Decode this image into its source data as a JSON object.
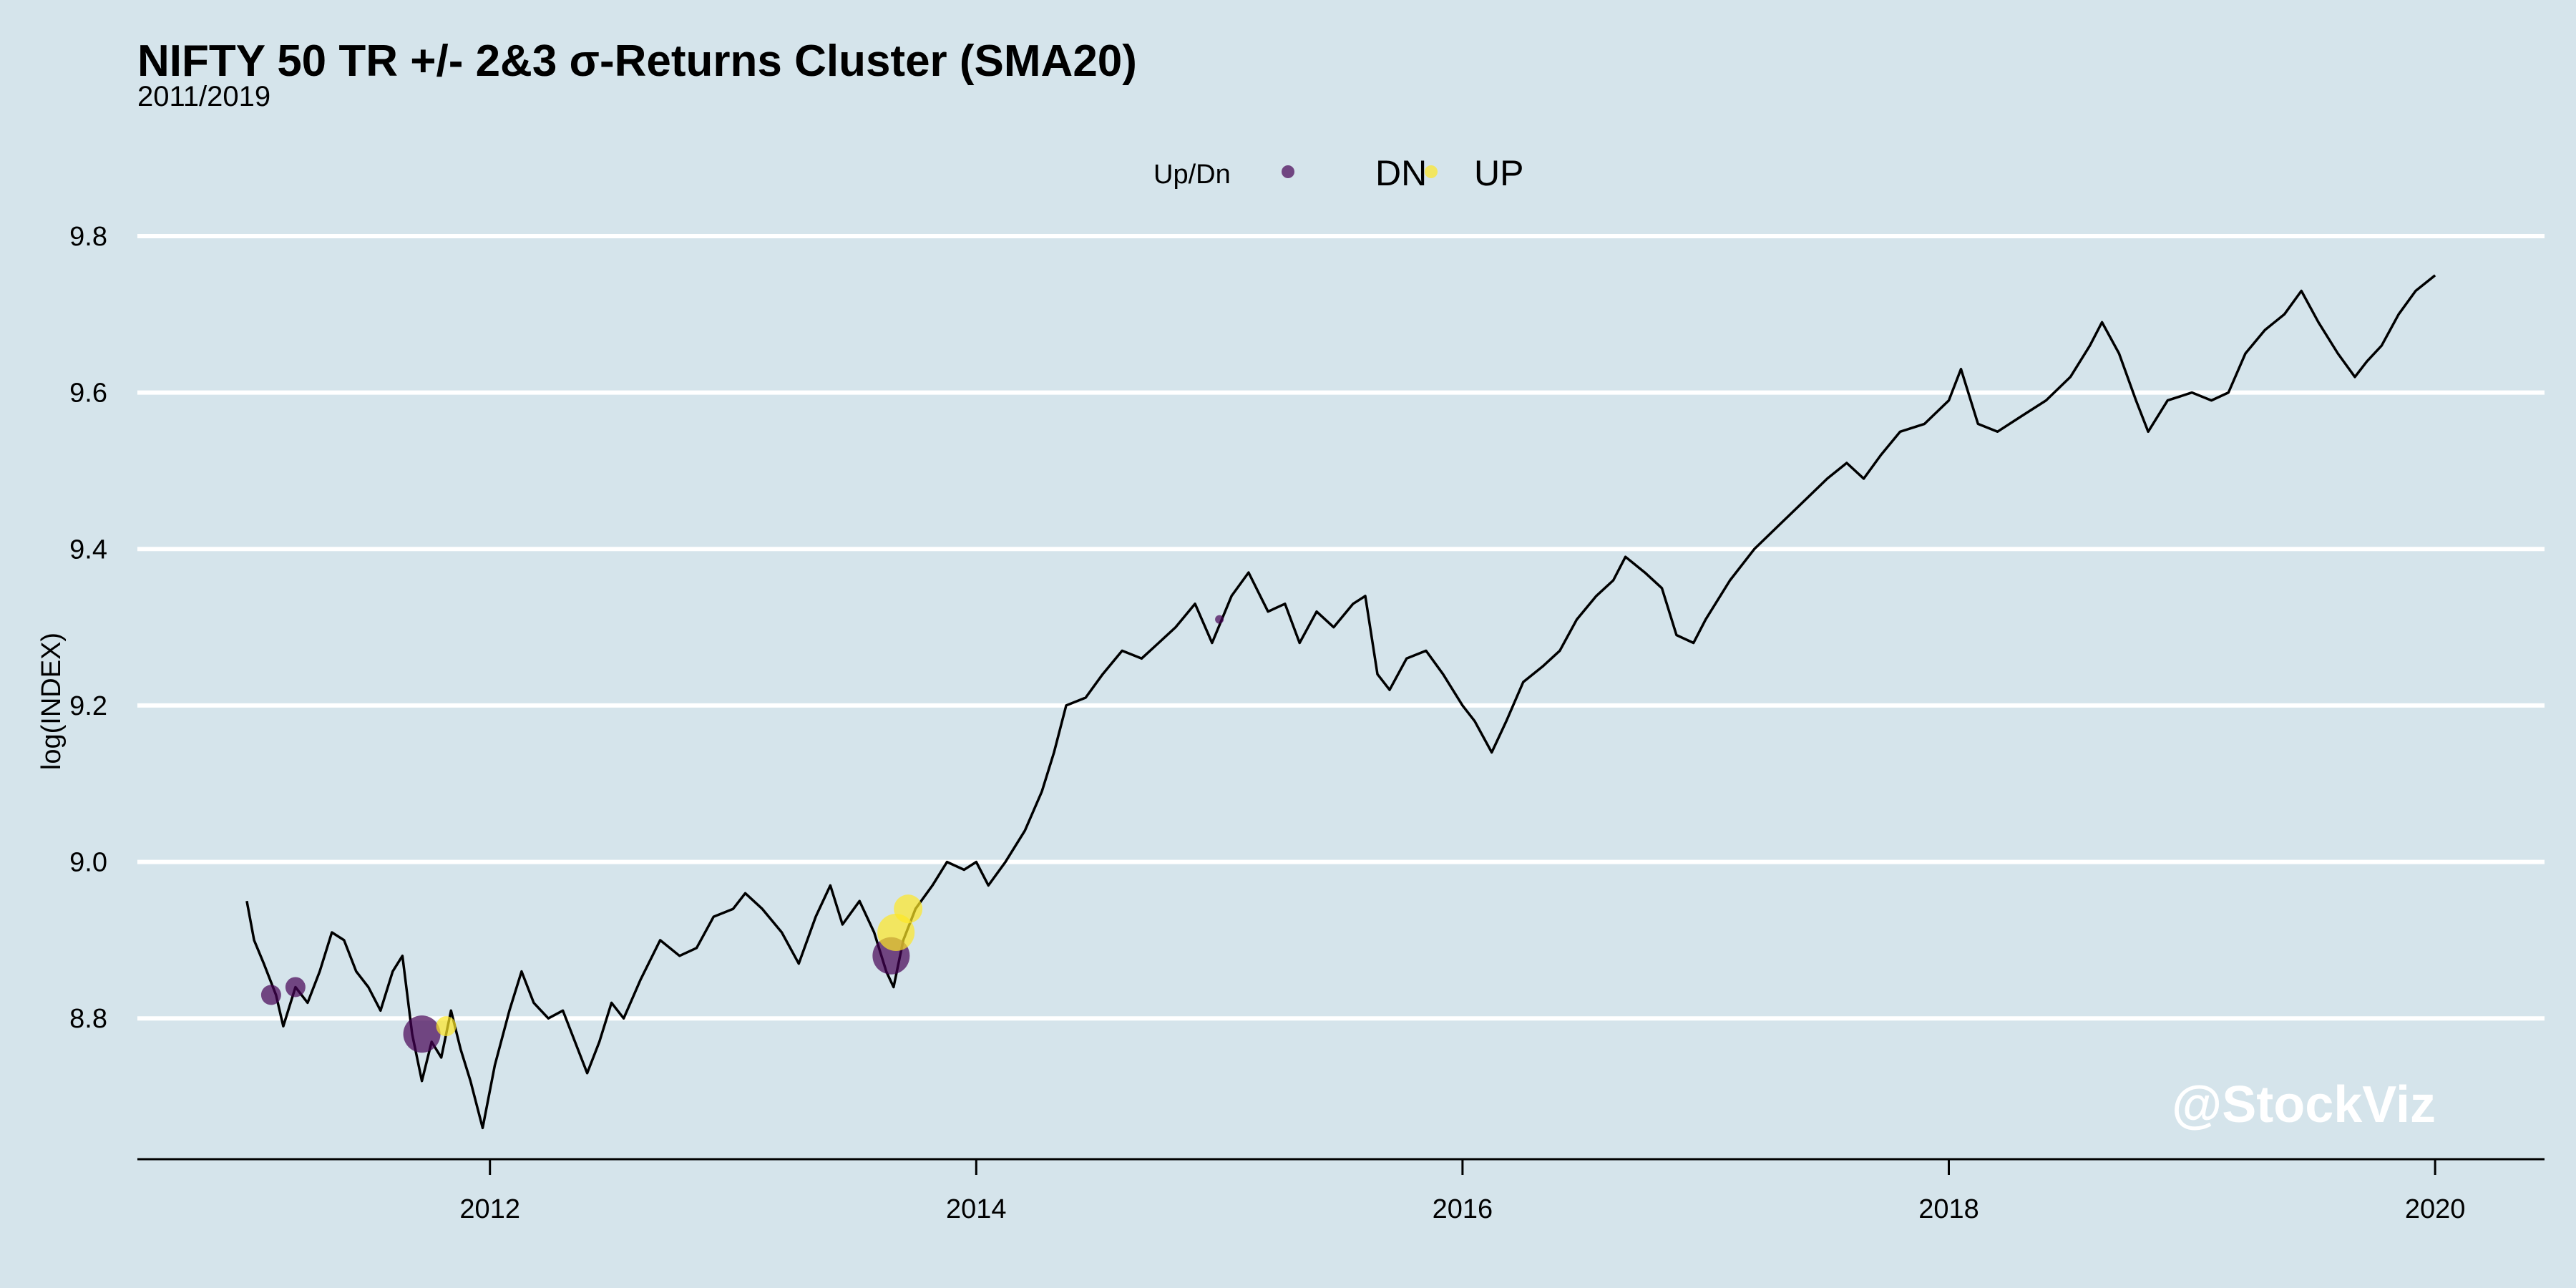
{
  "title": "NIFTY 50 TR +/- 2&3 σ-Returns Cluster (SMA20)",
  "subtitle": "2011/2019",
  "watermark": "@StockViz",
  "legend": {
    "title": "Up/Dn",
    "items": [
      {
        "label": "DN",
        "color": "#440154"
      },
      {
        "label": "UP",
        "color": "#fde725"
      }
    ]
  },
  "chart_data": {
    "type": "line",
    "title": "NIFTY 50 TR +/- 2&3 σ-Returns Cluster (SMA20)",
    "subtitle": "2011/2019",
    "xlabel": "",
    "ylabel": "log(INDEX)",
    "xlim": [
      2010.55,
      2020.45
    ],
    "ylim": [
      8.62,
      9.8
    ],
    "x_ticks": [
      2012,
      2014,
      2016,
      2018,
      2020
    ],
    "x_tick_labels": [
      "2012",
      "2014",
      "2016",
      "2018",
      "2020"
    ],
    "y_ticks": [
      8.8,
      9.0,
      9.2,
      9.4,
      9.6,
      9.8
    ],
    "y_tick_labels": [
      "8.8",
      "9.0",
      "9.2",
      "9.4",
      "9.6",
      "9.8"
    ],
    "grid": "horizontal",
    "legend_position": "top",
    "line_color": "#000000",
    "series": [
      {
        "values": [
          [
            2011.0,
            8.95
          ],
          [
            2011.03,
            8.9
          ],
          [
            2011.07,
            8.87
          ],
          [
            2011.12,
            8.83
          ],
          [
            2011.15,
            8.79
          ],
          [
            2011.2,
            8.84
          ],
          [
            2011.25,
            8.82
          ],
          [
            2011.3,
            8.86
          ],
          [
            2011.35,
            8.91
          ],
          [
            2011.4,
            8.9
          ],
          [
            2011.45,
            8.86
          ],
          [
            2011.5,
            8.84
          ],
          [
            2011.55,
            8.81
          ],
          [
            2011.6,
            8.86
          ],
          [
            2011.64,
            8.88
          ],
          [
            2011.68,
            8.78
          ],
          [
            2011.72,
            8.72
          ],
          [
            2011.76,
            8.77
          ],
          [
            2011.8,
            8.75
          ],
          [
            2011.84,
            8.81
          ],
          [
            2011.88,
            8.76
          ],
          [
            2011.92,
            8.72
          ],
          [
            2011.97,
            8.66
          ],
          [
            2012.02,
            8.74
          ],
          [
            2012.08,
            8.81
          ],
          [
            2012.13,
            8.86
          ],
          [
            2012.18,
            8.82
          ],
          [
            2012.24,
            8.8
          ],
          [
            2012.3,
            8.81
          ],
          [
            2012.35,
            8.77
          ],
          [
            2012.4,
            8.73
          ],
          [
            2012.45,
            8.77
          ],
          [
            2012.5,
            8.82
          ],
          [
            2012.55,
            8.8
          ],
          [
            2012.62,
            8.85
          ],
          [
            2012.7,
            8.9
          ],
          [
            2012.78,
            8.88
          ],
          [
            2012.85,
            8.89
          ],
          [
            2012.92,
            8.93
          ],
          [
            2013.0,
            8.94
          ],
          [
            2013.05,
            8.96
          ],
          [
            2013.12,
            8.94
          ],
          [
            2013.2,
            8.91
          ],
          [
            2013.27,
            8.87
          ],
          [
            2013.34,
            8.93
          ],
          [
            2013.4,
            8.97
          ],
          [
            2013.45,
            8.92
          ],
          [
            2013.52,
            8.95
          ],
          [
            2013.58,
            8.91
          ],
          [
            2013.63,
            8.86
          ],
          [
            2013.66,
            8.84
          ],
          [
            2013.7,
            8.9
          ],
          [
            2013.75,
            8.94
          ],
          [
            2013.82,
            8.97
          ],
          [
            2013.88,
            9.0
          ],
          [
            2013.95,
            8.99
          ],
          [
            2014.0,
            9.0
          ],
          [
            2014.05,
            8.97
          ],
          [
            2014.12,
            9.0
          ],
          [
            2014.2,
            9.04
          ],
          [
            2014.27,
            9.09
          ],
          [
            2014.32,
            9.14
          ],
          [
            2014.37,
            9.2
          ],
          [
            2014.45,
            9.21
          ],
          [
            2014.52,
            9.24
          ],
          [
            2014.6,
            9.27
          ],
          [
            2014.68,
            9.26
          ],
          [
            2014.75,
            9.28
          ],
          [
            2014.82,
            9.3
          ],
          [
            2014.9,
            9.33
          ],
          [
            2014.97,
            9.28
          ],
          [
            2015.05,
            9.34
          ],
          [
            2015.12,
            9.37
          ],
          [
            2015.2,
            9.32
          ],
          [
            2015.27,
            9.33
          ],
          [
            2015.33,
            9.28
          ],
          [
            2015.4,
            9.32
          ],
          [
            2015.47,
            9.3
          ],
          [
            2015.55,
            9.33
          ],
          [
            2015.6,
            9.34
          ],
          [
            2015.65,
            9.24
          ],
          [
            2015.7,
            9.22
          ],
          [
            2015.77,
            9.26
          ],
          [
            2015.85,
            9.27
          ],
          [
            2015.92,
            9.24
          ],
          [
            2016.0,
            9.2
          ],
          [
            2016.05,
            9.18
          ],
          [
            2016.12,
            9.14
          ],
          [
            2016.18,
            9.18
          ],
          [
            2016.25,
            9.23
          ],
          [
            2016.33,
            9.25
          ],
          [
            2016.4,
            9.27
          ],
          [
            2016.47,
            9.31
          ],
          [
            2016.55,
            9.34
          ],
          [
            2016.62,
            9.36
          ],
          [
            2016.67,
            9.39
          ],
          [
            2016.75,
            9.37
          ],
          [
            2016.82,
            9.35
          ],
          [
            2016.88,
            9.29
          ],
          [
            2016.95,
            9.28
          ],
          [
            2017.0,
            9.31
          ],
          [
            2017.1,
            9.36
          ],
          [
            2017.2,
            9.4
          ],
          [
            2017.3,
            9.43
          ],
          [
            2017.4,
            9.46
          ],
          [
            2017.5,
            9.49
          ],
          [
            2017.58,
            9.51
          ],
          [
            2017.65,
            9.49
          ],
          [
            2017.72,
            9.52
          ],
          [
            2017.8,
            9.55
          ],
          [
            2017.9,
            9.56
          ],
          [
            2018.0,
            9.59
          ],
          [
            2018.05,
            9.63
          ],
          [
            2018.12,
            9.56
          ],
          [
            2018.2,
            9.55
          ],
          [
            2018.3,
            9.57
          ],
          [
            2018.4,
            9.59
          ],
          [
            2018.5,
            9.62
          ],
          [
            2018.58,
            9.66
          ],
          [
            2018.63,
            9.69
          ],
          [
            2018.7,
            9.65
          ],
          [
            2018.77,
            9.59
          ],
          [
            2018.82,
            9.55
          ],
          [
            2018.9,
            9.59
          ],
          [
            2019.0,
            9.6
          ],
          [
            2019.08,
            9.59
          ],
          [
            2019.15,
            9.6
          ],
          [
            2019.22,
            9.65
          ],
          [
            2019.3,
            9.68
          ],
          [
            2019.38,
            9.7
          ],
          [
            2019.45,
            9.73
          ],
          [
            2019.52,
            9.69
          ],
          [
            2019.6,
            9.65
          ],
          [
            2019.67,
            9.62
          ],
          [
            2019.72,
            9.64
          ],
          [
            2019.78,
            9.66
          ],
          [
            2019.85,
            9.7
          ],
          [
            2019.92,
            9.73
          ],
          [
            2020.0,
            9.75
          ]
        ]
      }
    ],
    "clusters": [
      {
        "x": 2011.1,
        "y": 8.83,
        "size": "small",
        "direction": "DN"
      },
      {
        "x": 2011.2,
        "y": 8.84,
        "size": "small",
        "direction": "DN"
      },
      {
        "x": 2011.72,
        "y": 8.78,
        "size": "large",
        "direction": "DN"
      },
      {
        "x": 2011.82,
        "y": 8.79,
        "size": "small",
        "direction": "UP"
      },
      {
        "x": 2013.65,
        "y": 8.88,
        "size": "large",
        "direction": "DN"
      },
      {
        "x": 2013.67,
        "y": 8.91,
        "size": "large",
        "direction": "UP"
      },
      {
        "x": 2013.72,
        "y": 8.94,
        "size": "medium",
        "direction": "UP"
      },
      {
        "x": 2015.0,
        "y": 9.31,
        "size": "tiny",
        "direction": "DN"
      }
    ]
  }
}
